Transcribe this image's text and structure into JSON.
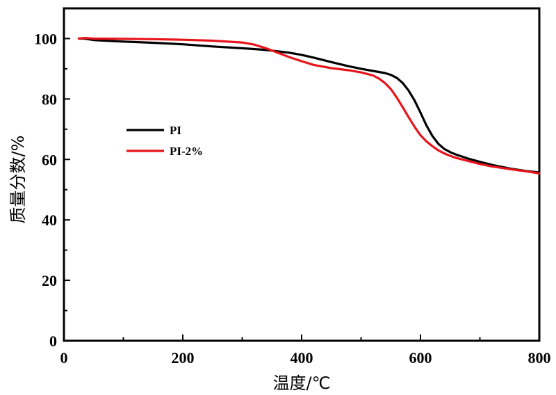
{
  "chart_data": {
    "type": "line",
    "title": "",
    "xlabel": "温度/℃",
    "ylabel": "质量分数/%",
    "xlim": [
      0,
      800
    ],
    "ylim": [
      0,
      110
    ],
    "xticks": [
      0,
      200,
      400,
      600,
      800
    ],
    "yticks": [
      0,
      20,
      40,
      60,
      80,
      100
    ],
    "grid": false,
    "legend_position": "center-left",
    "series": [
      {
        "name": "PI",
        "color": "#000000",
        "x": [
          25,
          35,
          50,
          100,
          150,
          200,
          250,
          300,
          330,
          350,
          380,
          400,
          420,
          450,
          480,
          500,
          520,
          540,
          550,
          560,
          570,
          580,
          590,
          600,
          610,
          620,
          630,
          640,
          650,
          660,
          680,
          700,
          720,
          750,
          780,
          800
        ],
        "y": [
          100.0,
          100.0,
          99.5,
          99.0,
          98.6,
          98.1,
          97.4,
          96.8,
          96.4,
          96.0,
          95.3,
          94.6,
          93.7,
          92.2,
          90.8,
          90.0,
          89.3,
          88.6,
          88.0,
          87.0,
          85.3,
          82.8,
          79.5,
          75.5,
          71.3,
          67.8,
          65.2,
          63.5,
          62.4,
          61.6,
          60.3,
          59.2,
          58.2,
          57.0,
          56.1,
          55.7
        ]
      },
      {
        "name": "PI-2%",
        "color": "#e8141b",
        "x": [
          25,
          35,
          50,
          100,
          150,
          200,
          250,
          300,
          320,
          340,
          360,
          380,
          400,
          420,
          450,
          480,
          500,
          520,
          530,
          540,
          550,
          560,
          570,
          580,
          590,
          600,
          610,
          620,
          630,
          640,
          650,
          660,
          680,
          700,
          720,
          750,
          780,
          800
        ],
        "y": [
          100.0,
          100.2,
          100.0,
          99.9,
          99.8,
          99.6,
          99.3,
          98.7,
          98.0,
          96.8,
          95.3,
          93.8,
          92.5,
          91.3,
          90.2,
          89.5,
          88.8,
          87.8,
          86.8,
          85.3,
          83.3,
          80.5,
          77.3,
          74.0,
          70.8,
          68.0,
          66.0,
          64.4,
          63.0,
          62.0,
          61.2,
          60.5,
          59.5,
          58.5,
          57.7,
          56.8,
          56.0,
          55.4
        ]
      }
    ]
  }
}
